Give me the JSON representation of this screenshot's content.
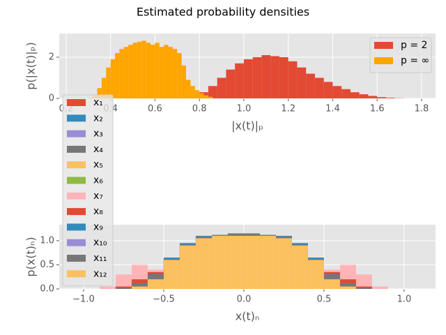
{
  "chart_data": [
    {
      "type": "histogram",
      "title": "Estimated probability densities",
      "x_label": "|x(t)|ₚ",
      "y_label": "p(|x(t)|ₚ)",
      "xlim": [
        0.169,
        1.863
      ],
      "ylim": [
        0,
        3.15
      ],
      "xticks": [
        0.2,
        0.4,
        0.6,
        0.8,
        {
          "value": 1.0,
          "label": "1.0"
        },
        1.2,
        1.4,
        1.6,
        1.8
      ],
      "yticks": [
        0,
        2
      ],
      "grid": true,
      "legend": "upper right",
      "series": [
        {
          "name": "p = 2",
          "color": "#E24A33",
          "bins": [
            0.76,
            0.8,
            0.84,
            0.88,
            0.92,
            0.96,
            1.0,
            1.04,
            1.08,
            1.12,
            1.16,
            1.2,
            1.24,
            1.28,
            1.32,
            1.36,
            1.4,
            1.44,
            1.48,
            1.52,
            1.56,
            1.6,
            1.64,
            1.68,
            1.72
          ],
          "values": [
            0.1,
            0.3,
            0.6,
            1.0,
            1.4,
            1.7,
            1.9,
            2.0,
            2.1,
            2.05,
            2.0,
            1.8,
            1.5,
            1.2,
            1.0,
            0.8,
            0.6,
            0.45,
            0.3,
            0.2,
            0.12,
            0.06,
            0.03,
            0.01
          ]
        },
        {
          "name": "p = ∞",
          "color": "#FFA500",
          "bins": [
            0.3,
            0.32,
            0.34,
            0.36,
            0.38,
            0.4,
            0.42,
            0.44,
            0.46,
            0.48,
            0.5,
            0.52,
            0.54,
            0.56,
            0.58,
            0.6,
            0.62,
            0.64,
            0.66,
            0.68,
            0.7,
            0.72,
            0.74,
            0.76,
            0.78,
            0.8,
            0.82,
            0.84,
            0.86
          ],
          "values": [
            0.05,
            0.15,
            0.5,
            1.0,
            1.5,
            1.9,
            2.2,
            2.4,
            2.5,
            2.6,
            2.7,
            2.75,
            2.8,
            2.7,
            2.6,
            2.7,
            2.5,
            2.6,
            2.5,
            2.4,
            2.2,
            1.6,
            0.9,
            0.6,
            0.4,
            0.25,
            0.15,
            0.08
          ]
        }
      ]
    },
    {
      "type": "histogram",
      "x_label": "x(t)ₙ",
      "y_label": "p(x(t)ₙ)",
      "xlim": [
        -1.152,
        1.196
      ],
      "ylim": [
        0,
        1.33
      ],
      "xticks": [
        {
          "value": -1.0,
          "label": "−1.0"
        },
        {
          "value": -0.5,
          "label": "−0.5"
        },
        {
          "value": 0.0,
          "label": "0.0"
        },
        0.5,
        {
          "value": 1.0,
          "label": "1.0"
        }
      ],
      "yticks": [
        {
          "value": 0,
          "label": "0.0"
        },
        0.5,
        {
          "value": 1.0,
          "label": "1.0"
        }
      ],
      "grid": true,
      "legend": "left",
      "bins": [
        -1.0,
        -0.9,
        -0.8,
        -0.7,
        -0.6,
        -0.5,
        -0.4,
        -0.3,
        -0.2,
        -0.1,
        0.0,
        0.1,
        0.2,
        0.3,
        0.4,
        0.5,
        0.6,
        0.7,
        0.8,
        0.9,
        1.0
      ],
      "series": [
        {
          "name": "x₁",
          "color": "#E24A33",
          "values": [
            0,
            0,
            0,
            0.05,
            0.2,
            0.6,
            0.9,
            1.05,
            1.1,
            1.1,
            1.1,
            1.1,
            1.05,
            0.9,
            0.6,
            0.2,
            0.05,
            0,
            0,
            0
          ]
        },
        {
          "name": "x₂",
          "color": "#348ABD",
          "values": [
            0,
            0,
            0.02,
            0.1,
            0.3,
            0.65,
            0.95,
            1.1,
            1.1,
            1.15,
            1.15,
            1.1,
            1.1,
            0.95,
            0.65,
            0.3,
            0.1,
            0.02,
            0,
            0
          ]
        },
        {
          "name": "x₃",
          "color": "#988ED5",
          "values": [
            0,
            0,
            0,
            0.05,
            0.25,
            0.6,
            0.9,
            1.05,
            1.1,
            1.1,
            1.1,
            1.1,
            1.05,
            0.9,
            0.6,
            0.25,
            0.05,
            0,
            0,
            0
          ]
        },
        {
          "name": "x₄",
          "color": "#777777",
          "values": [
            0,
            0,
            0.02,
            0.1,
            0.25,
            0.62,
            0.92,
            1.08,
            1.12,
            1.15,
            1.15,
            1.12,
            1.08,
            0.92,
            0.62,
            0.25,
            0.1,
            0.02,
            0,
            0
          ]
        },
        {
          "name": "x₅",
          "color": "#FBC15E",
          "values": [
            0,
            0,
            0,
            0.05,
            0.2,
            0.6,
            0.9,
            1.05,
            1.1,
            1.1,
            1.1,
            1.1,
            1.05,
            0.9,
            0.6,
            0.2,
            0.05,
            0,
            0,
            0
          ]
        },
        {
          "name": "x₆",
          "color": "#8EBA42",
          "values": [
            0,
            0,
            0,
            0.05,
            0.22,
            0.6,
            0.9,
            1.05,
            1.1,
            1.12,
            1.12,
            1.1,
            1.05,
            0.9,
            0.6,
            0.22,
            0.05,
            0,
            0,
            0
          ]
        },
        {
          "name": "x₇",
          "color": "#FFB5B8",
          "values": [
            0,
            0.05,
            0.3,
            0.5,
            0.4,
            0.5,
            0.8,
            1.0,
            1.05,
            1.05,
            1.05,
            1.05,
            1.0,
            0.8,
            0.5,
            0.4,
            0.5,
            0.3,
            0.05,
            0
          ]
        },
        {
          "name": "x₈",
          "color": "#E24A33",
          "values": [
            0,
            0,
            0.05,
            0.2,
            0.35,
            0.55,
            0.85,
            1.0,
            1.05,
            1.05,
            1.05,
            1.05,
            1.0,
            0.85,
            0.55,
            0.35,
            0.2,
            0.05,
            0,
            0
          ]
        },
        {
          "name": "x₉",
          "color": "#348ABD",
          "values": [
            0,
            0,
            0.02,
            0.12,
            0.3,
            0.6,
            0.9,
            1.05,
            1.1,
            1.12,
            1.12,
            1.1,
            1.05,
            0.9,
            0.6,
            0.3,
            0.12,
            0.02,
            0,
            0
          ]
        },
        {
          "name": "x₁₀",
          "color": "#988ED5",
          "values": [
            0,
            0,
            0,
            0.08,
            0.25,
            0.6,
            0.9,
            1.05,
            1.1,
            1.1,
            1.1,
            1.1,
            1.05,
            0.9,
            0.6,
            0.25,
            0.08,
            0,
            0,
            0
          ]
        },
        {
          "name": "x₁₁",
          "color": "#777777",
          "values": [
            0,
            0,
            0.02,
            0.1,
            0.28,
            0.62,
            0.92,
            1.08,
            1.12,
            1.15,
            1.15,
            1.12,
            1.08,
            0.92,
            0.62,
            0.28,
            0.1,
            0.02,
            0,
            0
          ]
        },
        {
          "name": "x₁₂",
          "color": "#FBC15E",
          "values": [
            0,
            0,
            0,
            0.05,
            0.2,
            0.6,
            0.9,
            1.05,
            1.1,
            1.1,
            1.1,
            1.1,
            1.05,
            0.9,
            0.6,
            0.2,
            0.05,
            0,
            0,
            0
          ]
        }
      ]
    }
  ]
}
